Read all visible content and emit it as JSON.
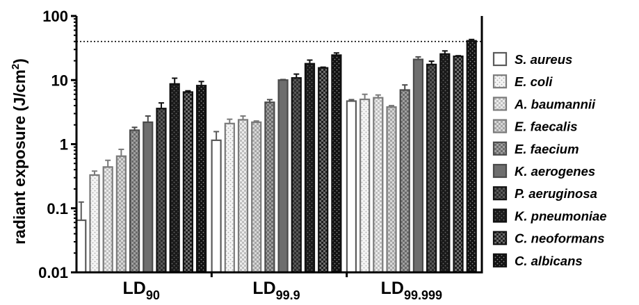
{
  "chart_data": {
    "type": "bar",
    "yscale": "log",
    "ylabel": "radiant exposure (J/cm",
    "ylabel_sup": "2",
    "ylabel_tail": ")",
    "ylim": [
      0.01,
      100
    ],
    "yticks": [
      {
        "value": 0.01,
        "label": "0.01"
      },
      {
        "value": 0.1,
        "label": "0.1"
      },
      {
        "value": 1,
        "label": "1"
      },
      {
        "value": 10,
        "label": "10"
      },
      {
        "value": 100,
        "label": "100"
      }
    ],
    "reference_line": {
      "value": 40,
      "style": "dotted"
    },
    "groups": [
      {
        "base": "LD",
        "sub": "90"
      },
      {
        "base": "LD",
        "sub": "99.9"
      },
      {
        "base": "LD",
        "sub": "99.999"
      }
    ],
    "series": [
      {
        "name": "S. aureus",
        "pattern": "open",
        "values": [
          0.065,
          1.15,
          4.7
        ],
        "errors": [
          0.06,
          0.42,
          0.25
        ]
      },
      {
        "name": "E. coli",
        "pattern": "light-dots",
        "values": [
          0.33,
          2.1,
          5.0
        ],
        "errors": [
          0.05,
          0.35,
          1.0
        ]
      },
      {
        "name": "A. baumannii",
        "pattern": "light-checker",
        "values": [
          0.44,
          2.4,
          5.3
        ],
        "errors": [
          0.12,
          0.35,
          0.55
        ]
      },
      {
        "name": "E. faecalis",
        "pattern": "medium-light-checker",
        "values": [
          0.65,
          2.2,
          3.8
        ],
        "errors": [
          0.18,
          0.1,
          0.2
        ]
      },
      {
        "name": "E. faecium",
        "pattern": "medium-checker",
        "values": [
          1.65,
          4.5,
          7.0
        ],
        "errors": [
          0.18,
          0.45,
          1.4
        ]
      },
      {
        "name": "K. aerogenes",
        "pattern": "solid-gray",
        "values": [
          2.2,
          10.0,
          21.0
        ],
        "errors": [
          0.55,
          0.2,
          2.0
        ]
      },
      {
        "name": "P. aeruginosa",
        "pattern": "dark-checker",
        "values": [
          3.6,
          10.8,
          17.5
        ],
        "errors": [
          0.8,
          1.6,
          2.2
        ]
      },
      {
        "name": "K. pneumoniae",
        "pattern": "dark-dots",
        "values": [
          8.7,
          18.0,
          25.5
        ],
        "errors": [
          2.0,
          2.5,
          3.0
        ]
      },
      {
        "name": "C. neoformans",
        "pattern": "dark-checker-2",
        "values": [
          6.5,
          15.5,
          23.5
        ],
        "errors": [
          0.3,
          0.4,
          0.5
        ]
      },
      {
        "name": "C. albicans",
        "pattern": "black-dots",
        "values": [
          8.2,
          24.5,
          41.0
        ],
        "errors": [
          1.3,
          2.0,
          2.0
        ]
      }
    ],
    "colors": {
      "open": "#ffffff",
      "light-dots": "#f2f2f2",
      "light-checker": "#dedede",
      "medium-light-checker": "#c8c8c8",
      "medium-checker": "#8a8a8a",
      "solid-gray": "#6e6e6e",
      "dark-checker": "#454545",
      "dark-dots": "#1e1e1e",
      "dark-checker-2": "#3a3a3a",
      "black-dots": "#151515",
      "frame": "#555555"
    },
    "legend_position": "right",
    "grid": false
  }
}
